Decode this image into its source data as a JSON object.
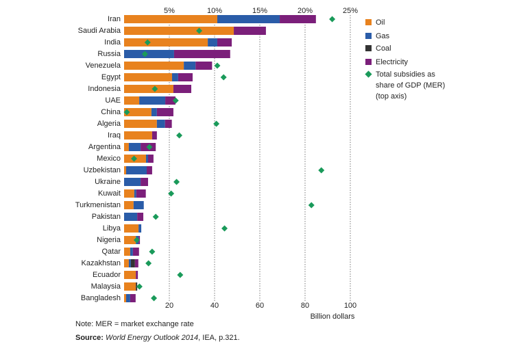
{
  "chart_data": {
    "type": "stacked-bar-horizontal",
    "categories": [
      "Iran",
      "Saudi Arabia",
      "India",
      "Russia",
      "Venezuela",
      "Egypt",
      "Indonesia",
      "UAE",
      "China",
      "Algeria",
      "Iraq",
      "Argentina",
      "Mexico",
      "Uzbekistan",
      "Ukraine",
      "Kuwait",
      "Turkmenistan",
      "Pakistan",
      "Libya",
      "Nigeria",
      "Qatar",
      "Kazakhstan",
      "Ecuador",
      "Malaysia",
      "Bangladesh"
    ],
    "series": [
      {
        "name": "Oil",
        "color": "#e8821e",
        "values": [
          41.2,
          48.5,
          37,
          0,
          26.4,
          21.2,
          21.8,
          6.7,
          12.1,
          14.5,
          12.4,
          2.1,
          9.7,
          0.9,
          0,
          4.5,
          4.2,
          0,
          6.4,
          5.2,
          2.7,
          2.1,
          5.2,
          5.2,
          0.9
        ]
      },
      {
        "name": "Gas",
        "color": "#2a5ca8",
        "values": [
          27.6,
          0,
          4.2,
          22.1,
          5.2,
          2.7,
          0,
          11.5,
          2.4,
          3.6,
          0,
          5.2,
          0.9,
          9.1,
          7.3,
          0.9,
          4.5,
          5.8,
          1.2,
          1.2,
          1.2,
          0.9,
          0,
          0,
          1.8
        ]
      },
      {
        "name": "Coal",
        "color": "#333333",
        "values": [
          0,
          0,
          0,
          0,
          0,
          0,
          0,
          0,
          0,
          0,
          0,
          0,
          0,
          0,
          0,
          0,
          0,
          0,
          0,
          0,
          0,
          1.8,
          0,
          0.6,
          0
        ]
      },
      {
        "name": "Electricity",
        "color": "#7b1f7a",
        "values": [
          16,
          14.2,
          6.4,
          24.8,
          7.3,
          6.4,
          7.9,
          4.5,
          7.3,
          3,
          2.1,
          6.7,
          2.4,
          2.4,
          3.3,
          4.2,
          0,
          2.7,
          0,
          0.6,
          2.7,
          1.5,
          0.9,
          0,
          2.4
        ]
      },
      {
        "name": "Total subsidies as share of GDP (MER) (top axis)",
        "color": "#1a9a5a",
        "axis": "x2",
        "values": [
          23,
          8.3,
          2.6,
          2.3,
          10.3,
          11,
          3.4,
          5.7,
          0.3,
          10.2,
          6.1,
          2.8,
          1.1,
          21.8,
          5.8,
          5.2,
          20.7,
          3.5,
          11.1,
          1.4,
          3.1,
          2.7,
          6.2,
          1.7,
          3.3
        ]
      }
    ],
    "xlim": [
      0,
      100
    ],
    "xticks": [
      20,
      40,
      60,
      80,
      100
    ],
    "x2lim": [
      0,
      25
    ],
    "x2ticks": [
      {
        "value": 5,
        "label": "5%"
      },
      {
        "value": 10,
        "label": "10%"
      },
      {
        "value": 15,
        "label": "15%"
      },
      {
        "value": 20,
        "label": "20%"
      },
      {
        "value": 25,
        "label": "25%"
      }
    ],
    "xlabel": "Billion dollars",
    "grid": true,
    "legend": "right",
    "note": "Note: MER = market exchange rate",
    "source_label": "Source:",
    "source_title": "World Energy Outlook 2014",
    "source_rest": ", IEA, p.321."
  }
}
